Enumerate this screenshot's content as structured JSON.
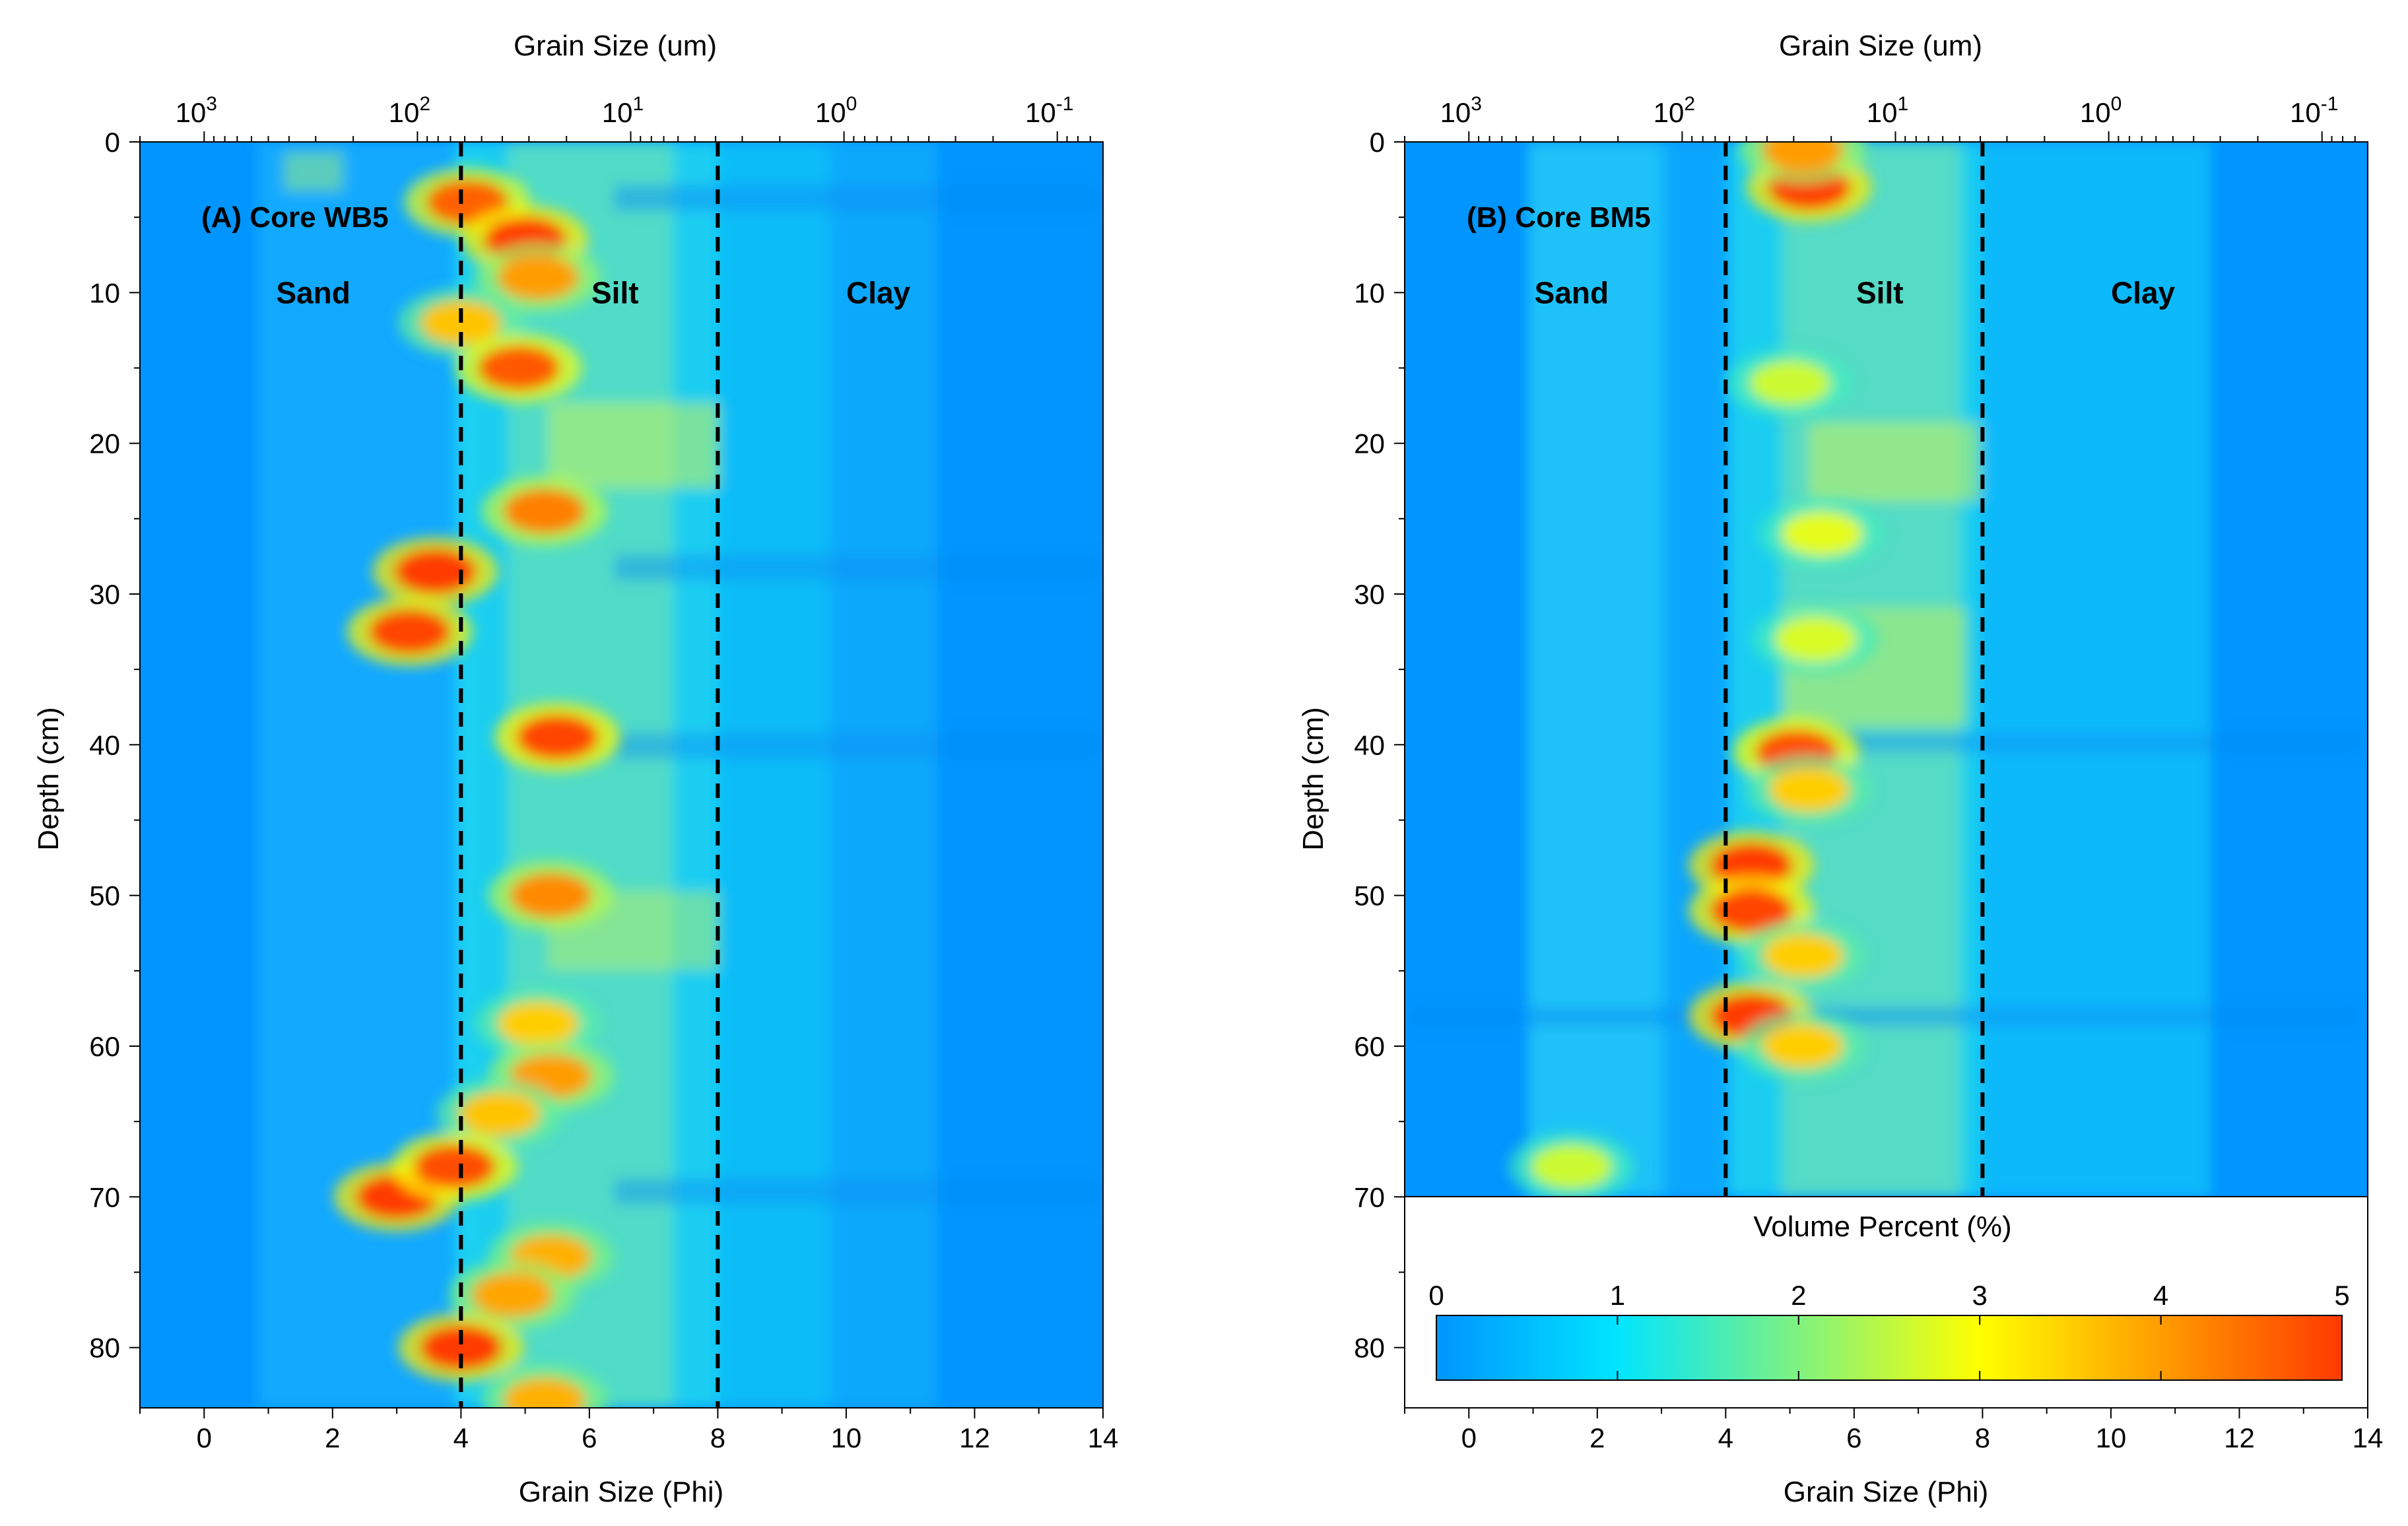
{
  "chart_data": [
    {
      "type": "heatmap",
      "id": "A",
      "title": "(A) Core WB5",
      "xlabel": "Grain Size (Phi)",
      "x2label": "Grain Size (um)",
      "ylabel": "Depth (cm)",
      "xlim": [
        -1,
        14
      ],
      "ylim": [
        0,
        84
      ],
      "y_max_data": 84,
      "x_ticks": [
        "0",
        "2",
        "4",
        "6",
        "8",
        "10",
        "12",
        "14"
      ],
      "y_ticks": [
        "0",
        "10",
        "20",
        "30",
        "40",
        "50",
        "60",
        "70",
        "80"
      ],
      "top_ticks": [
        {
          "base": "10",
          "exp": "3"
        },
        {
          "base": "10",
          "exp": "2"
        },
        {
          "base": "10",
          "exp": "1"
        },
        {
          "base": "10",
          "exp": "0"
        },
        {
          "base": "10",
          "exp": "-1"
        }
      ],
      "dividers_phi": [
        4,
        8
      ],
      "zones": [
        {
          "label": "Sand",
          "phi": 1.7,
          "depth": 10
        },
        {
          "label": "Silt",
          "phi": 6.4,
          "depth": 10
        },
        {
          "label": "Clay",
          "phi": 10.5,
          "depth": 10
        }
      ],
      "hotspots": [
        {
          "phi": 4.1,
          "depth": 4,
          "vol": 4.6
        },
        {
          "phi": 5.0,
          "depth": 6.5,
          "vol": 5.0
        },
        {
          "phi": 5.2,
          "depth": 9,
          "vol": 4.0
        },
        {
          "phi": 4.0,
          "depth": 12,
          "vol": 3.6
        },
        {
          "phi": 4.9,
          "depth": 15,
          "vol": 4.7
        },
        {
          "phi": 5.3,
          "depth": 24.5,
          "vol": 4.3
        },
        {
          "phi": 3.6,
          "depth": 28.5,
          "vol": 5.0
        },
        {
          "phi": 3.2,
          "depth": 32.5,
          "vol": 4.9
        },
        {
          "phi": 5.5,
          "depth": 39.5,
          "vol": 4.9
        },
        {
          "phi": 5.4,
          "depth": 50,
          "vol": 4.2
        },
        {
          "phi": 5.2,
          "depth": 58.5,
          "vol": 3.5
        },
        {
          "phi": 5.4,
          "depth": 62,
          "vol": 4.0
        },
        {
          "phi": 4.6,
          "depth": 64.5,
          "vol": 3.6
        },
        {
          "phi": 3.0,
          "depth": 70,
          "vol": 5.0
        },
        {
          "phi": 3.9,
          "depth": 68,
          "vol": 4.8
        },
        {
          "phi": 5.4,
          "depth": 74,
          "vol": 3.8
        },
        {
          "phi": 4.8,
          "depth": 76.5,
          "vol": 3.9
        },
        {
          "phi": 4.0,
          "depth": 80,
          "vol": 5.0
        },
        {
          "phi": 5.3,
          "depth": 83.5,
          "vol": 3.8
        }
      ]
    },
    {
      "type": "heatmap",
      "id": "B",
      "title": "(B) Core BM5",
      "xlabel": "Grain Size (Phi)",
      "x2label": "Grain Size (um)",
      "ylabel": "Depth (cm)",
      "xlim": [
        -1,
        14
      ],
      "ylim": [
        0,
        84
      ],
      "y_max_data": 70,
      "x_ticks": [
        "0",
        "2",
        "4",
        "6",
        "8",
        "10",
        "12",
        "14"
      ],
      "y_ticks": [
        "0",
        "10",
        "20",
        "30",
        "40",
        "50",
        "60",
        "70",
        "80"
      ],
      "top_ticks": [
        {
          "base": "10",
          "exp": "3"
        },
        {
          "base": "10",
          "exp": "2"
        },
        {
          "base": "10",
          "exp": "1"
        },
        {
          "base": "10",
          "exp": "0"
        },
        {
          "base": "10",
          "exp": "-1"
        }
      ],
      "dividers_phi": [
        4,
        8
      ],
      "zones": [
        {
          "label": "Sand",
          "phi": 1.6,
          "depth": 10
        },
        {
          "label": "Silt",
          "phi": 6.4,
          "depth": 10
        },
        {
          "label": "Clay",
          "phi": 10.5,
          "depth": 10
        }
      ],
      "hotspots": [
        {
          "phi": 5.3,
          "depth": 3,
          "vol": 5.0
        },
        {
          "phi": 5.2,
          "depth": 0.5,
          "vol": 4.0
        },
        {
          "phi": 5.0,
          "depth": 16,
          "vol": 2.6
        },
        {
          "phi": 5.5,
          "depth": 26,
          "vol": 2.8
        },
        {
          "phi": 5.4,
          "depth": 33,
          "vol": 2.7
        },
        {
          "phi": 5.1,
          "depth": 40.5,
          "vol": 4.8
        },
        {
          "phi": 5.3,
          "depth": 43,
          "vol": 3.5
        },
        {
          "phi": 4.4,
          "depth": 48,
          "vol": 5.0
        },
        {
          "phi": 4.4,
          "depth": 51,
          "vol": 4.9
        },
        {
          "phi": 5.2,
          "depth": 54,
          "vol": 3.5
        },
        {
          "phi": 4.4,
          "depth": 58,
          "vol": 5.0
        },
        {
          "phi": 5.2,
          "depth": 60,
          "vol": 3.5
        },
        {
          "phi": 1.6,
          "depth": 68,
          "vol": 2.6
        }
      ],
      "colorbar": {
        "label": "Volume Percent (%)",
        "range": [
          0,
          5
        ],
        "ticks": [
          "0",
          "1",
          "2",
          "3",
          "4",
          "5"
        ],
        "colors": [
          "#0095ff",
          "#00e5ff",
          "#ffff00",
          "#ff3a00"
        ]
      }
    }
  ]
}
